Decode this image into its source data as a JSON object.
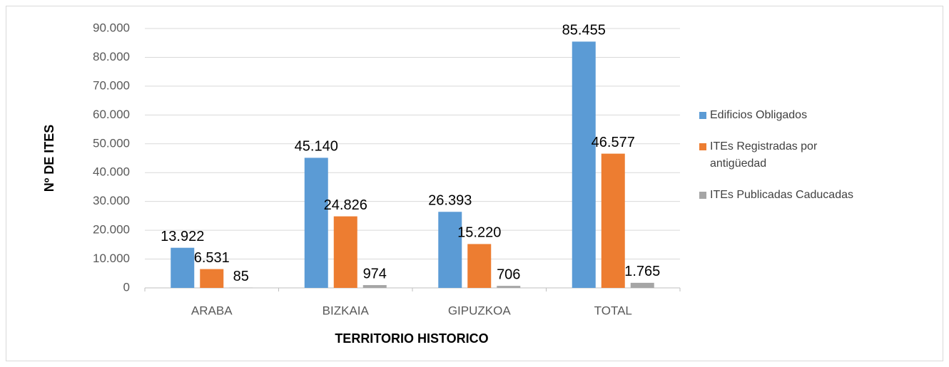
{
  "chart_data": {
    "type": "bar",
    "categories": [
      "ARABA",
      "BIZKAIA",
      "GIPUZKOA",
      "TOTAL"
    ],
    "series": [
      {
        "name": "Edificios Obligados",
        "color": "#5b9bd5",
        "values": [
          13922,
          45140,
          26393,
          85455
        ],
        "value_labels": [
          "13.922",
          "45.140",
          "26.393",
          "85.455"
        ]
      },
      {
        "name": "ITEs Registradas por antigüedad",
        "color": "#ed7d31",
        "values": [
          6531,
          24826,
          15220,
          46577
        ],
        "value_labels": [
          "6.531",
          "24.826",
          "15.220",
          "46.577"
        ]
      },
      {
        "name": "ITEs Publicadas Caducadas",
        "color": "#a5a5a5",
        "values": [
          85,
          974,
          706,
          1765
        ],
        "value_labels": [
          "85",
          "974",
          "706",
          "1.765"
        ]
      }
    ],
    "x_label": "TERRITORIO HISTORICO",
    "y_label": "Nº DE ITES",
    "ylim": [
      0,
      90000
    ],
    "yticks": [
      0,
      {
        "value": 10000,
        "label": "10.000"
      },
      {
        "value": 20000,
        "label": "20.000"
      },
      {
        "value": 30000,
        "label": "30.000"
      },
      {
        "value": 40000,
        "label": "40.000"
      },
      {
        "value": 50000,
        "label": "50.000"
      },
      {
        "value": 60000,
        "label": "60.000"
      },
      {
        "value": 70000,
        "label": "70.000"
      },
      {
        "value": 80000,
        "label": "80.000"
      },
      {
        "value": 90000,
        "label": "90.000"
      }
    ],
    "grid": true,
    "legend": "right"
  }
}
